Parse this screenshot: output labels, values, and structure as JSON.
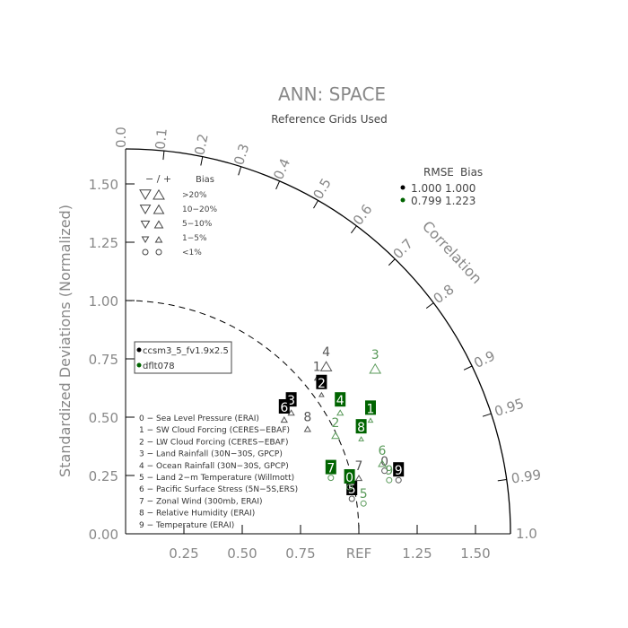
{
  "chart_data": {
    "type": "scatter",
    "subtype": "taylor-diagram",
    "title": "ANN: SPACE",
    "subtitle": "Reference Grids Used",
    "ylabel": "Standardized Deviations (Normalized)",
    "angular_label": "Correlation",
    "std_ticks": [
      "0.00",
      "0.25",
      "0.50",
      "0.75",
      "1.00",
      "1.25",
      "1.50"
    ],
    "x_ticks": [
      "0.25",
      "0.50",
      "0.75",
      "REF",
      "1.25",
      "1.50"
    ],
    "x_tick_values": [
      0.25,
      0.5,
      0.75,
      1.0,
      1.25,
      1.5
    ],
    "corr_ticks": [
      "0.0",
      "0.1",
      "0.2",
      "0.3",
      "0.4",
      "0.5",
      "0.6",
      "0.7",
      "0.8",
      "0.9",
      "0.95",
      "0.99",
      "1.0"
    ],
    "corr_values": [
      0,
      0.1,
      0.2,
      0.3,
      0.4,
      0.5,
      0.6,
      0.7,
      0.8,
      0.9,
      0.95,
      0.99,
      1.0
    ],
    "std_max": 1.65,
    "ref_arc": 1.0,
    "bias_legend": {
      "header_sign": "− / +",
      "header": "Bias",
      "rows": [
        ">20%",
        "10−20%",
        "5−10%",
        "1−5%",
        "<1%"
      ]
    },
    "rmse_legend": {
      "header_rmse": "RMSE",
      "header_bias": "Bias",
      "rows": [
        {
          "rmse": "1.000",
          "bias": "1.000",
          "color": "#000000"
        },
        {
          "rmse": "0.799",
          "bias": "1.223",
          "color": "#006400"
        }
      ]
    },
    "cases": [
      {
        "name": "ccsm3_5_fv1.9x2.5",
        "color": "#000000"
      },
      {
        "name": "dflt078",
        "color": "#006400"
      }
    ],
    "variables": [
      "0 − Sea Level Pressure (ERAI)",
      "1 − SW Cloud Forcing (CERES−EBAF)",
      "2 − LW Cloud Forcing (CERES−EBAF)",
      "3 − Land Rainfall (30N−30S, GPCP)",
      "4 − Ocean Rainfall (30N−30S, GPCP)",
      "5 − Land 2−m Temperature (Willmott)",
      "6 − Pacific Surface Stress (5N−5S,ERS)",
      "7 − Zonal Wind (300mb, ERAI)",
      "8 − Relative Humidity (ERAI)",
      "9 − Temperature (ERAI)"
    ],
    "series": [
      {
        "name": "ccsm3_5_fv1.9x2.5",
        "color": "#000000",
        "points": [
          {
            "id": "0",
            "x": 1.11,
            "y": 0.27,
            "marker": "circle",
            "size": 1,
            "boxed": false
          },
          {
            "id": "1",
            "x": 0.82,
            "y": 0.67,
            "marker": "up",
            "size": 1,
            "boxed": false
          },
          {
            "id": "2",
            "x": 0.84,
            "y": 0.6,
            "marker": "up",
            "size": 1,
            "boxed": true
          },
          {
            "id": "3",
            "x": 0.71,
            "y": 0.52,
            "marker": "up",
            "size": 2,
            "boxed": true
          },
          {
            "id": "4",
            "x": 0.86,
            "y": 0.71,
            "marker": "up",
            "size": 4,
            "boxed": false
          },
          {
            "id": "5",
            "x": 0.97,
            "y": 0.15,
            "marker": "circle",
            "size": 1,
            "boxed": true
          },
          {
            "id": "6",
            "x": 0.68,
            "y": 0.49,
            "marker": "up",
            "size": 2,
            "boxed": true
          },
          {
            "id": "7",
            "x": 1.0,
            "y": 0.24,
            "marker": "up",
            "size": 2,
            "boxed": false
          },
          {
            "id": "8",
            "x": 0.78,
            "y": 0.45,
            "marker": "up",
            "size": 2,
            "boxed": false
          },
          {
            "id": "9",
            "x": 1.17,
            "y": 0.23,
            "marker": "circle",
            "size": 1,
            "boxed": true
          }
        ]
      },
      {
        "name": "dflt078",
        "color": "#006400",
        "points": [
          {
            "id": "0",
            "x": 0.96,
            "y": 0.2,
            "marker": "circle",
            "size": 1,
            "boxed": true
          },
          {
            "id": "1",
            "x": 1.05,
            "y": 0.49,
            "marker": "up",
            "size": 1,
            "boxed": true
          },
          {
            "id": "2",
            "x": 0.9,
            "y": 0.42,
            "marker": "up",
            "size": 3,
            "boxed": false
          },
          {
            "id": "3",
            "x": 1.07,
            "y": 0.7,
            "marker": "up",
            "size": 4,
            "boxed": false
          },
          {
            "id": "4",
            "x": 0.92,
            "y": 0.52,
            "marker": "up",
            "size": 2,
            "boxed": true
          },
          {
            "id": "5",
            "x": 1.02,
            "y": 0.13,
            "marker": "circle",
            "size": 1,
            "boxed": false
          },
          {
            "id": "6",
            "x": 1.1,
            "y": 0.3,
            "marker": "up",
            "size": 3,
            "boxed": false
          },
          {
            "id": "7",
            "x": 0.88,
            "y": 0.24,
            "marker": "circle",
            "size": 1,
            "boxed": true
          },
          {
            "id": "8",
            "x": 1.01,
            "y": 0.41,
            "marker": "up",
            "size": 1,
            "boxed": true
          },
          {
            "id": "9",
            "x": 1.13,
            "y": 0.23,
            "marker": "circle",
            "size": 1,
            "boxed": false
          }
        ]
      }
    ]
  }
}
